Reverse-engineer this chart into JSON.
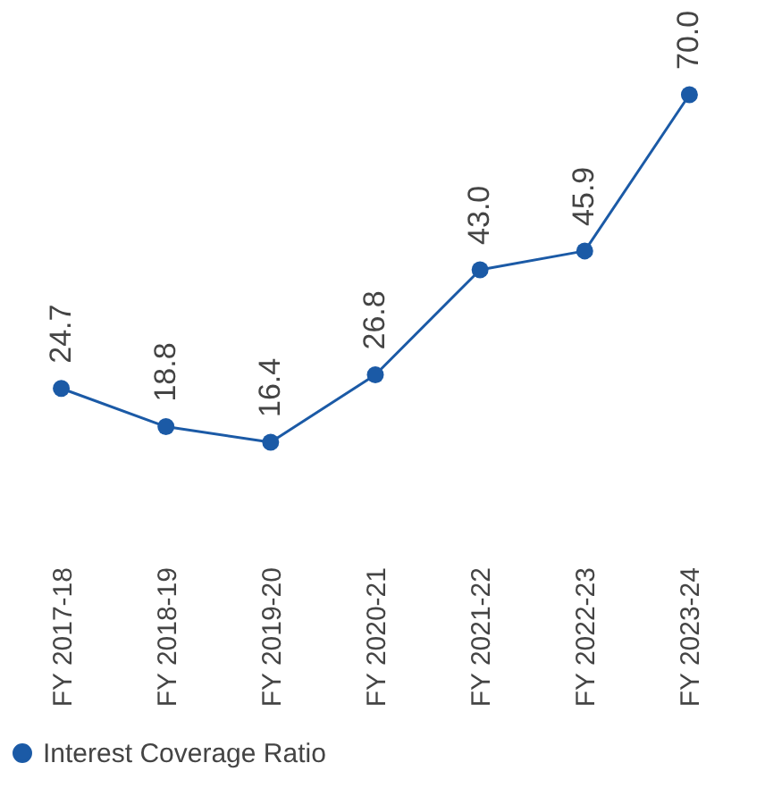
{
  "chart_data": {
    "type": "line",
    "categories": [
      "FY 2017-18",
      "FY 2018-19",
      "FY 2019-20",
      "FY 2020-21",
      "FY 2021-22",
      "FY 2022-23",
      "FY 2023-24"
    ],
    "series": [
      {
        "name": "Interest Coverage Ratio",
        "color": "#1b5aa6",
        "values": [
          24.7,
          18.8,
          16.4,
          26.8,
          43.0,
          45.9,
          70.0
        ],
        "value_labels": [
          "24.7",
          "18.8",
          "16.4",
          "26.8",
          "43.0",
          "45.9",
          "70.0"
        ]
      }
    ],
    "marker": "circle",
    "grid": false,
    "legend": "bottom",
    "tick_labels": "x"
  }
}
